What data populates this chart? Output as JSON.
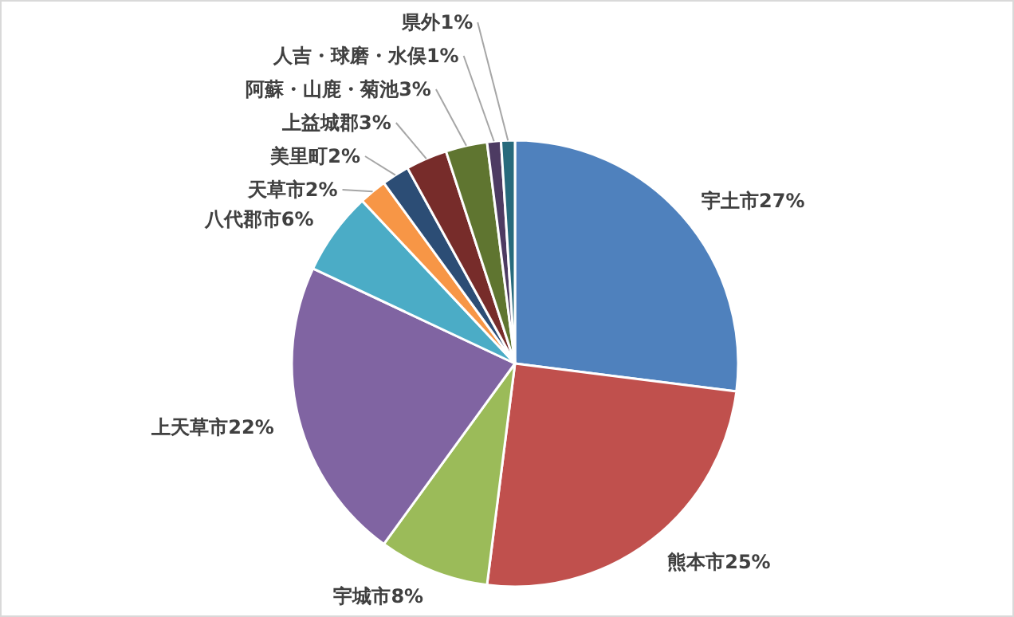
{
  "chart_data": {
    "type": "pie",
    "categories": [
      "宇土市",
      "熊本市",
      "宇城市",
      "上天草市",
      "八代郡市",
      "天草市",
      "美里町",
      "上益城郡",
      "阿蘇・山鹿・菊池",
      "人吉・球磨・水俣",
      "県外"
    ],
    "values": [
      27,
      25,
      8,
      22,
      6,
      2,
      2,
      3,
      3,
      1,
      1
    ],
    "value_labels": [
      "27%",
      "25%",
      "8%",
      "22%",
      "6%",
      "2%",
      "2%",
      "3%",
      "3%",
      "1%",
      "1%"
    ],
    "colors": [
      "#4f81bd",
      "#c0504d",
      "#9bbb59",
      "#8064a2",
      "#4bacc6",
      "#f79646",
      "#2c4d75",
      "#772c2a",
      "#5f7530",
      "#4d3b62",
      "#276a7c"
    ]
  }
}
